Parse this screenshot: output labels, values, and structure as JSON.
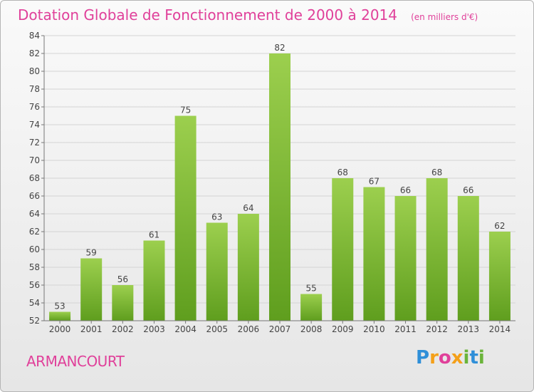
{
  "header": {
    "title": "Dotation Globale de Fonctionnement de 2000 à 2014",
    "subtitle": "(en milliers d'€)"
  },
  "footer": {
    "commune": "ARMANCOURT",
    "logo": [
      "P",
      "r",
      "o",
      "x",
      "i",
      "t",
      "i"
    ],
    "logo_colors": [
      "#2f8fd8",
      "#f4a01a",
      "#e0409a",
      "#f4a01a",
      "#6ab43a",
      "#2f8fd8",
      "#6ab43a"
    ]
  },
  "chart_data": {
    "type": "bar",
    "categories": [
      "2000",
      "2001",
      "2002",
      "2003",
      "2004",
      "2005",
      "2006",
      "2007",
      "2008",
      "2009",
      "2010",
      "2011",
      "2012",
      "2013",
      "2014"
    ],
    "values": [
      53,
      59,
      56,
      61,
      75,
      63,
      64,
      82,
      55,
      68,
      67,
      66,
      68,
      66,
      62
    ],
    "title": "Dotation Globale de Fonctionnement de 2000 à 2014",
    "subtitle": "(en milliers d'€)",
    "ylim": [
      52,
      84
    ],
    "yticks": [
      52,
      54,
      56,
      58,
      60,
      62,
      64,
      66,
      68,
      70,
      72,
      74,
      76,
      78,
      80,
      82,
      84
    ],
    "grid": true,
    "bar_color_top": "#9ccf4e",
    "bar_color_bottom": "#5f9e1e",
    "data_labels": true
  }
}
